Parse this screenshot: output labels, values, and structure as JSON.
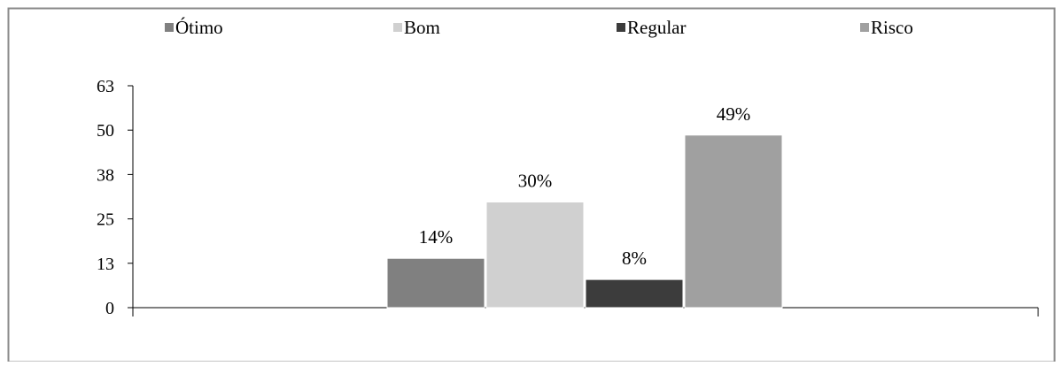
{
  "chart_data": {
    "type": "bar",
    "title": "",
    "xlabel": "",
    "ylabel": "",
    "categories": [
      ""
    ],
    "series": [
      {
        "name": "Ótimo",
        "values": [
          14
        ],
        "label": "14%",
        "color": "#808080"
      },
      {
        "name": "Bom",
        "values": [
          30
        ],
        "label": "30%",
        "color": "#d0d0d0"
      },
      {
        "name": "Regular",
        "values": [
          8
        ],
        "label": "8%",
        "color": "#3c3c3c"
      },
      {
        "name": "Risco",
        "values": [
          49
        ],
        "label": "49%",
        "color": "#a0a0a0"
      }
    ],
    "ylim": [
      0,
      63
    ],
    "yticks": [
      {
        "value": 0,
        "label": "0"
      },
      {
        "value": 12.6,
        "label": "13"
      },
      {
        "value": 25.2,
        "label": "25"
      },
      {
        "value": 37.8,
        "label": "38"
      },
      {
        "value": 50.4,
        "label": "50"
      },
      {
        "value": 63,
        "label": "63"
      }
    ],
    "legend_position": "top",
    "grid": false
  }
}
